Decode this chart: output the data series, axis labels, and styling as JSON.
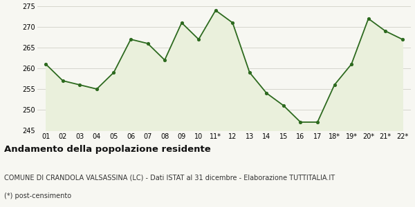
{
  "x_labels": [
    "01",
    "02",
    "03",
    "04",
    "05",
    "06",
    "07",
    "08",
    "09",
    "10",
    "11*",
    "12",
    "13",
    "14",
    "15",
    "16",
    "17",
    "18*",
    "19*",
    "20*",
    "21*",
    "22*"
  ],
  "y_values": [
    261,
    257,
    256,
    255,
    259,
    267,
    266,
    262,
    271,
    267,
    274,
    271,
    259,
    254,
    251,
    247,
    247,
    256,
    261,
    272,
    269,
    267
  ],
  "ylim": [
    245,
    275
  ],
  "yticks": [
    245,
    250,
    255,
    260,
    265,
    270,
    275
  ],
  "line_color": "#2d6a1f",
  "fill_color": "#eaf0dc",
  "marker_color": "#2d6a1f",
  "bg_color": "#f7f7f2",
  "plot_bg_color": "#f7f7f2",
  "grid_color": "#d0d0c8",
  "title": "Andamento della popolazione residente",
  "subtitle": "COMUNE DI CRANDOLA VALSASSINA (LC) - Dati ISTAT al 31 dicembre - Elaborazione TUTTITALIA.IT",
  "footnote": "(*) post-censimento",
  "title_fontsize": 9.5,
  "subtitle_fontsize": 7,
  "footnote_fontsize": 7
}
